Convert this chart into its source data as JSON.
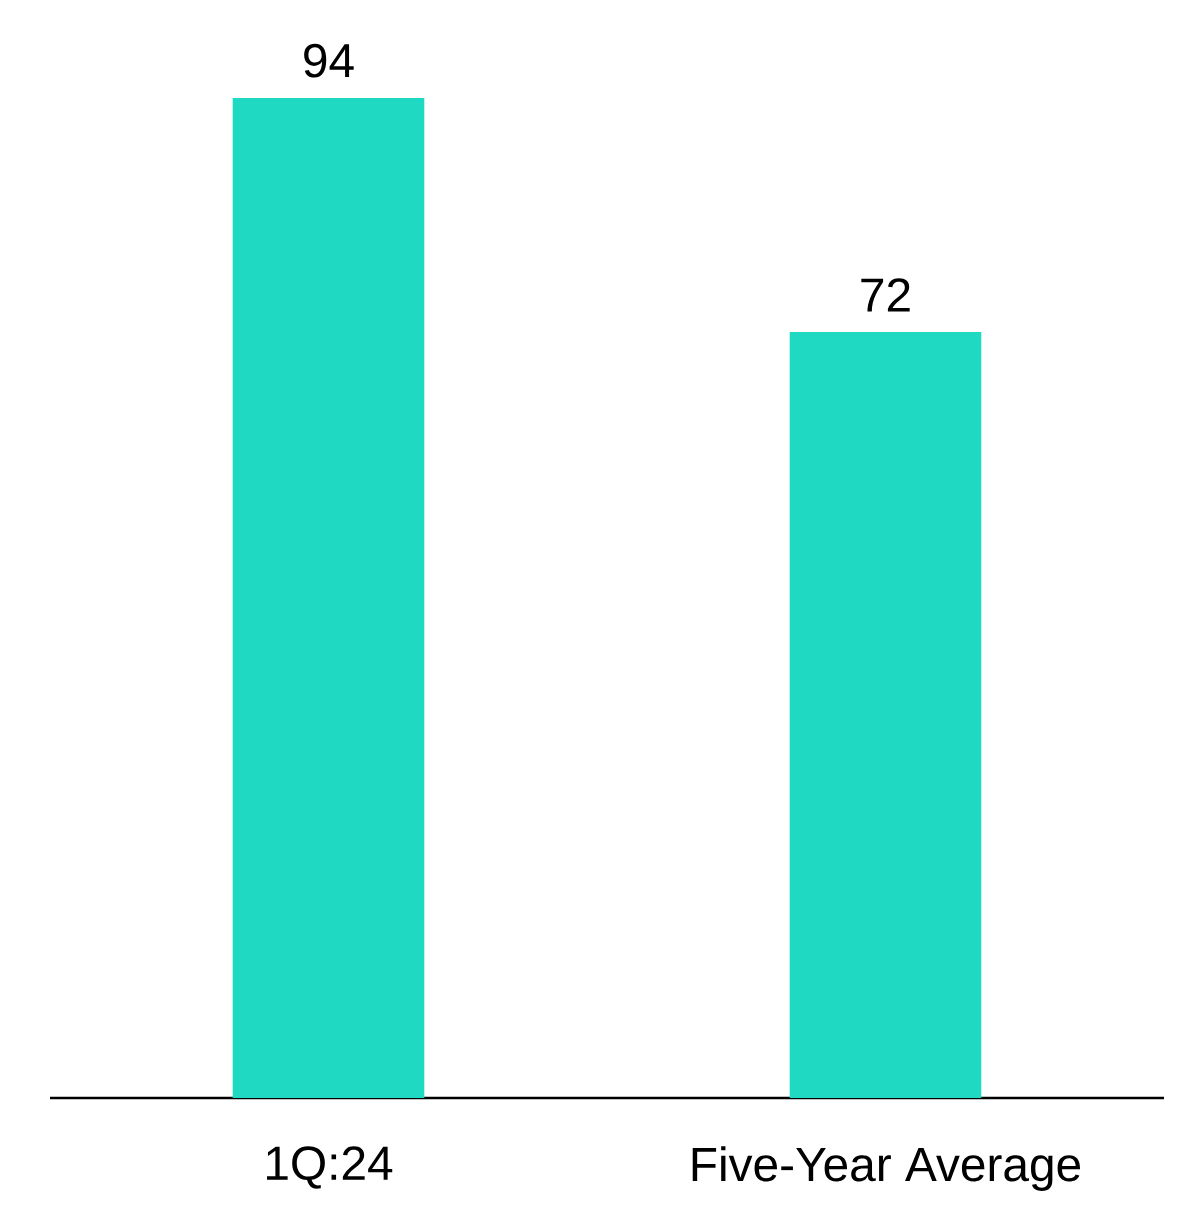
{
  "chart_data": {
    "type": "bar",
    "categories": [
      "1Q:24",
      "Five-Year Average"
    ],
    "values": [
      94,
      72
    ],
    "color": "#20d9c2",
    "data_labels": true
  }
}
